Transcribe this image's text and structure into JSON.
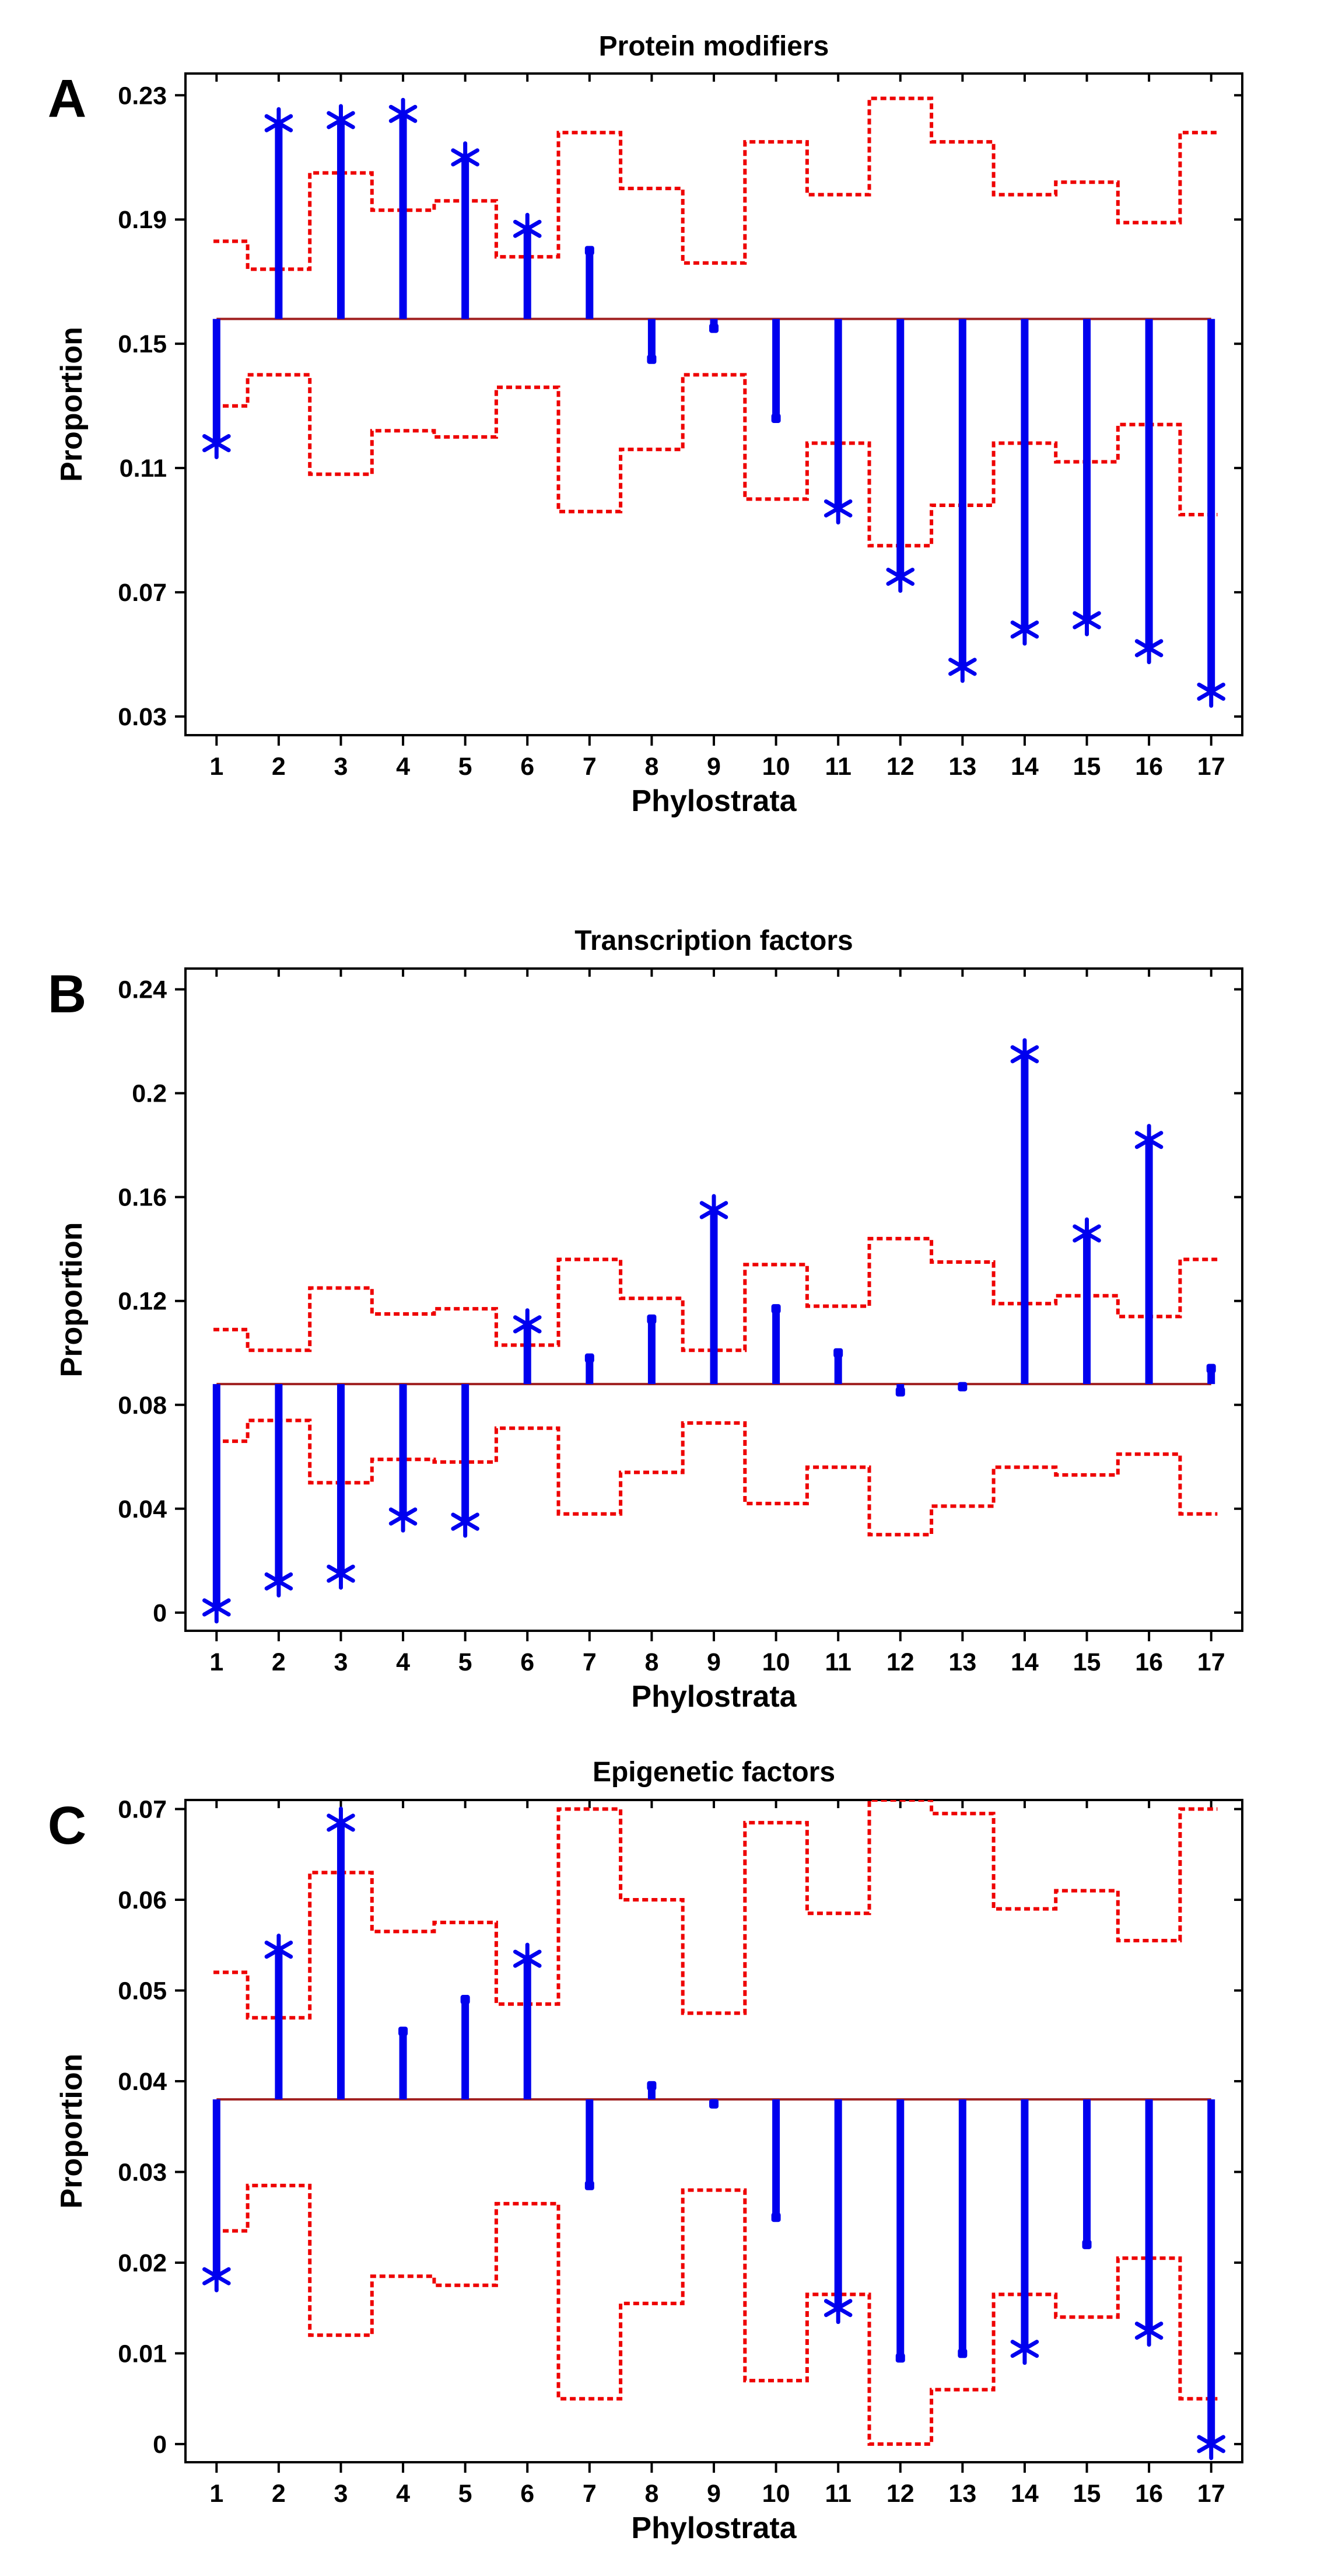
{
  "colors": {
    "stem": "#0000ee",
    "band": "#ee0000",
    "baseline": "#a02020",
    "axis": "#000000"
  },
  "chart_data": [
    {
      "panel_letter": "A",
      "type": "stem",
      "title": "Protein modifiers",
      "xlabel": "Phylostrata",
      "ylabel": "Proportion",
      "x": [
        1,
        2,
        3,
        4,
        5,
        6,
        7,
        8,
        9,
        10,
        11,
        12,
        13,
        14,
        15,
        16,
        17
      ],
      "xlim": [
        0.5,
        17.5
      ],
      "ylim": [
        0.024,
        0.237
      ],
      "yticks": [
        0.03,
        0.07,
        0.11,
        0.15,
        0.19,
        0.23
      ],
      "ytick_labels": [
        "0.03",
        "0.07",
        "0.11",
        "0.15",
        "0.19",
        "0.23"
      ],
      "baseline": 0.158,
      "values": [
        0.118,
        0.221,
        0.222,
        0.224,
        0.21,
        0.187,
        0.18,
        0.145,
        0.155,
        0.126,
        0.097,
        0.075,
        0.046,
        0.058,
        0.061,
        0.052,
        0.038
      ],
      "significant": [
        true,
        true,
        true,
        true,
        true,
        true,
        false,
        false,
        false,
        false,
        true,
        true,
        true,
        true,
        true,
        true,
        true
      ],
      "upper_bound": [
        0.183,
        0.174,
        0.205,
        0.193,
        0.196,
        0.178,
        0.218,
        0.2,
        0.176,
        0.215,
        0.198,
        0.229,
        0.215,
        0.198,
        0.202,
        0.189,
        0.218
      ],
      "lower_bound": [
        0.13,
        0.14,
        0.108,
        0.122,
        0.12,
        0.136,
        0.096,
        0.116,
        0.14,
        0.1,
        0.118,
        0.085,
        0.098,
        0.118,
        0.112,
        0.124,
        0.095
      ],
      "grid": false,
      "legend": "none"
    },
    {
      "panel_letter": "B",
      "type": "stem",
      "title": "Transcription factors",
      "xlabel": "Phylostrata",
      "ylabel": "Proportion",
      "x": [
        1,
        2,
        3,
        4,
        5,
        6,
        7,
        8,
        9,
        10,
        11,
        12,
        13,
        14,
        15,
        16,
        17
      ],
      "xlim": [
        0.5,
        17.5
      ],
      "ylim": [
        -0.007,
        0.248
      ],
      "yticks": [
        0,
        0.04,
        0.08,
        0.12,
        0.16,
        0.2,
        0.24
      ],
      "ytick_labels": [
        "0",
        "0.04",
        "0.08",
        "0.12",
        "0.16",
        "0.2",
        "0.24"
      ],
      "baseline": 0.088,
      "values": [
        0.002,
        0.012,
        0.015,
        0.037,
        0.035,
        0.111,
        0.098,
        0.113,
        0.155,
        0.117,
        0.1,
        0.085,
        0.087,
        0.215,
        0.146,
        0.182,
        0.094
      ],
      "significant": [
        true,
        true,
        true,
        true,
        true,
        true,
        false,
        false,
        true,
        false,
        false,
        false,
        false,
        true,
        true,
        true,
        false
      ],
      "upper_bound": [
        0.109,
        0.101,
        0.125,
        0.115,
        0.117,
        0.103,
        0.136,
        0.121,
        0.101,
        0.134,
        0.118,
        0.144,
        0.135,
        0.119,
        0.122,
        0.114,
        0.136
      ],
      "lower_bound": [
        0.066,
        0.074,
        0.05,
        0.059,
        0.058,
        0.071,
        0.038,
        0.054,
        0.073,
        0.042,
        0.056,
        0.03,
        0.041,
        0.056,
        0.053,
        0.061,
        0.038
      ],
      "grid": false,
      "legend": "none"
    },
    {
      "panel_letter": "C",
      "type": "stem",
      "title": "Epigenetic factors",
      "xlabel": "Phylostrata",
      "ylabel": "Proportion",
      "x": [
        1,
        2,
        3,
        4,
        5,
        6,
        7,
        8,
        9,
        10,
        11,
        12,
        13,
        14,
        15,
        16,
        17
      ],
      "xlim": [
        0.5,
        17.5
      ],
      "ylim": [
        -0.002,
        0.071
      ],
      "yticks": [
        0,
        0.01,
        0.02,
        0.03,
        0.04,
        0.05,
        0.06,
        0.07
      ],
      "ytick_labels": [
        "0",
        "0.01",
        "0.02",
        "0.03",
        "0.04",
        "0.05",
        "0.06",
        "0.07"
      ],
      "baseline": 0.038,
      "values": [
        0.0185,
        0.0545,
        0.0685,
        0.0455,
        0.049,
        0.0535,
        0.0285,
        0.0395,
        0.0375,
        0.025,
        0.015,
        0.0095,
        0.01,
        0.0105,
        0.022,
        0.0125,
        0.0
      ],
      "significant": [
        true,
        true,
        true,
        false,
        false,
        true,
        false,
        false,
        false,
        false,
        true,
        false,
        false,
        true,
        false,
        true,
        true
      ],
      "upper_bound": [
        0.052,
        0.047,
        0.063,
        0.0565,
        0.0575,
        0.0485,
        0.07,
        0.06,
        0.0475,
        0.0685,
        0.0585,
        0.071,
        0.0695,
        0.059,
        0.061,
        0.0555,
        0.07
      ],
      "lower_bound": [
        0.0235,
        0.0285,
        0.012,
        0.0185,
        0.0175,
        0.0265,
        0.005,
        0.0155,
        0.028,
        0.007,
        0.0165,
        0.0,
        0.006,
        0.0165,
        0.014,
        0.0205,
        0.005
      ],
      "grid": false,
      "legend": "none"
    }
  ]
}
